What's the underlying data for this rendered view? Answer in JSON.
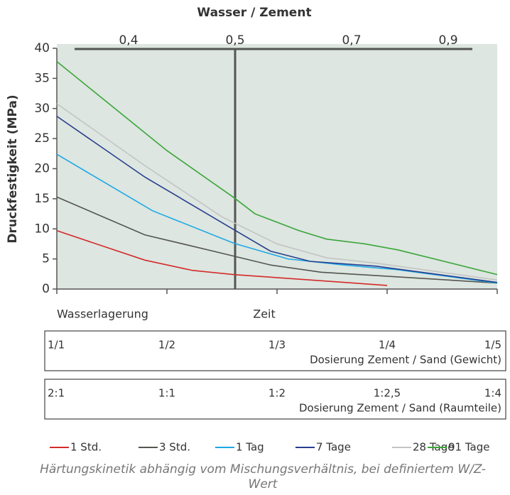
{
  "chart_data": {
    "type": "line",
    "title": "Wasser / Zement",
    "y_label": "Druckfestigkeit (MPa)",
    "ylim": [
      0,
      40
    ],
    "yticks": [
      0,
      5,
      10,
      15,
      20,
      25,
      30,
      35,
      40
    ],
    "xlim": [
      0,
      4
    ],
    "xticks": [
      0,
      1,
      2,
      3,
      4
    ],
    "x2ticks": [
      {
        "value": 0.4,
        "label": "0,4"
      },
      {
        "value": 0.5,
        "label": "0,5"
      },
      {
        "value": 0.7,
        "label": "0,7"
      },
      {
        "value": 0.9,
        "label": "0,9"
      }
    ],
    "x_label_left": "Wasserlagerung",
    "x_label_center": "Zeit",
    "dosing_tables": [
      {
        "labels": [
          "1/1",
          "1/2",
          "1/3",
          "1/4",
          "1/5"
        ],
        "title": "Dosierung Zement / Sand (Gewicht)"
      },
      {
        "labels": [
          "2:1",
          "1:1",
          "1:2",
          "1:2,5",
          "1:4"
        ],
        "title": "Dosierung Zement / Sand (Raumteile)"
      }
    ],
    "series": [
      {
        "name": "1 Std.",
        "color": "#d42a2a",
        "x": [
          0,
          0.8,
          1.23,
          1.61,
          2,
          3
        ],
        "values": [
          9.7,
          4.8,
          3.1,
          2.4,
          1.9,
          0.6
        ]
      },
      {
        "name": "3 Std.",
        "color": "#555550",
        "x": [
          0,
          0.8,
          1.42,
          1.94,
          2.4,
          4
        ],
        "values": [
          15.3,
          9,
          6.3,
          4,
          2.8,
          1.0
        ]
      },
      {
        "name": "1 Tag",
        "color": "#1ea8e6",
        "x": [
          0,
          0.87,
          1.61,
          2.1,
          2.6,
          3.1,
          4
        ],
        "values": [
          22.4,
          13,
          7.6,
          5,
          4,
          3.2,
          1.0
        ]
      },
      {
        "name": "7 Tage",
        "color": "#273f8f",
        "x": [
          0,
          0.8,
          1.55,
          1.94,
          2.3,
          2.9,
          4
        ],
        "values": [
          28.7,
          18.6,
          10.5,
          6.3,
          4.6,
          3.8,
          1.1
        ]
      },
      {
        "name": "28 Tage",
        "color": "#c4c4c4",
        "x": [
          0,
          0.8,
          1.5,
          2.0,
          2.45,
          2.9,
          4
        ],
        "values": [
          30.8,
          20.5,
          12,
          7.5,
          5.2,
          4.3,
          1.5
        ]
      },
      {
        "name": "91 Tage",
        "color": "#3aa63a",
        "x": [
          0,
          1.0,
          1.6,
          1.8,
          2.2,
          2.45,
          2.8,
          3.1,
          4
        ],
        "values": [
          37.8,
          23,
          15.3,
          12.5,
          9.7,
          8.3,
          7.5,
          6.5,
          2.4
        ]
      }
    ],
    "caption": "Härtungskinetik abhängig vom Mischungsverhältnis, bei definiertem W/Z-Wert"
  }
}
